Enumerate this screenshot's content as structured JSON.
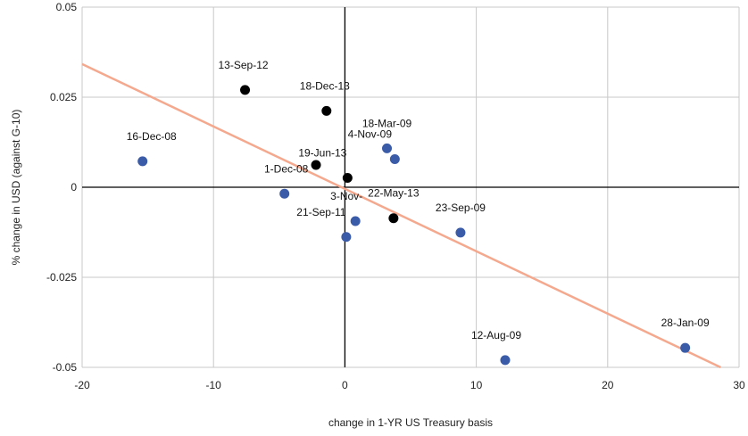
{
  "chart_data": {
    "type": "scatter",
    "title": "",
    "xlabel": "change in 1-YR US Treasury basis",
    "ylabel": "% change in USD (against G-10)",
    "xlim": [
      -20,
      30
    ],
    "ylim": [
      -0.05,
      0.05
    ],
    "x_ticks": [
      -20,
      -10,
      0,
      10,
      20,
      30
    ],
    "y_ticks": [
      0.05,
      0.025,
      0,
      -0.025,
      -0.05
    ],
    "x_tick_labels": [
      "-20",
      "-10",
      "0",
      "10",
      "20",
      "30"
    ],
    "y_tick_labels": [
      "0.05",
      "0.025",
      "0",
      "-0.025",
      "-0.05"
    ],
    "grid": true,
    "legend": "none",
    "colors": {
      "blue": "#3a5ba8",
      "black": "#000000",
      "trend": "#f4a98e",
      "grid": "#c8c8c8"
    },
    "points": [
      {
        "label": "16-Dec-08",
        "x": -15.4,
        "y": 0.0072,
        "color": "blue"
      },
      {
        "label": "13-Sep-12",
        "x": -7.6,
        "y": 0.027,
        "color": "black"
      },
      {
        "label": "1-Dec-08",
        "x": -4.6,
        "y": -0.0018,
        "color": "blue"
      },
      {
        "label": "",
        "x": -2.2,
        "y": 0.0062,
        "color": "black"
      },
      {
        "label": "18-Dec-13",
        "x": -1.4,
        "y": 0.0212,
        "color": "black"
      },
      {
        "label": "19-Jun-13",
        "x": 0.2,
        "y": 0.0026,
        "color": "black"
      },
      {
        "label": "21-Sep-11",
        "x": 0.1,
        "y": -0.0138,
        "color": "blue"
      },
      {
        "label": "3-Nov-",
        "x": 0.8,
        "y": -0.0094,
        "color": "blue"
      },
      {
        "label": "18-Mar-09",
        "x": 3.2,
        "y": 0.0108,
        "color": "blue"
      },
      {
        "label": "4-Nov-09",
        "x": 3.8,
        "y": 0.0078,
        "color": "blue"
      },
      {
        "label": "22-May-13",
        "x": 3.7,
        "y": -0.0086,
        "color": "black"
      },
      {
        "label": "23-Sep-09",
        "x": 8.8,
        "y": -0.0126,
        "color": "blue"
      },
      {
        "label": "12-Aug-09",
        "x": 12.2,
        "y": -0.048,
        "color": "blue"
      },
      {
        "label": "28-Jan-09",
        "x": 25.9,
        "y": -0.0446,
        "color": "blue"
      }
    ],
    "trendline": {
      "x": [
        -20,
        28.6
      ],
      "y": [
        0.0342,
        -0.05
      ]
    }
  }
}
